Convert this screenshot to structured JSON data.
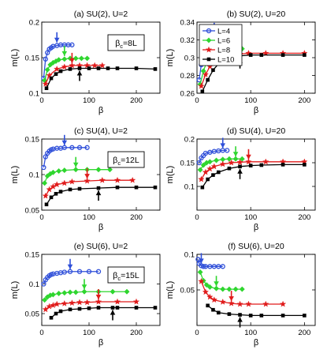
{
  "figure": {
    "legend": {
      "entries": [
        {
          "label": "L=4",
          "color": "#2f4fd9",
          "marker": "circle"
        },
        {
          "label": "L=6",
          "color": "#2fd62f",
          "marker": "diamond"
        },
        {
          "label": "L=8",
          "color": "#e01b1b",
          "marker": "star"
        },
        {
          "label": "L=10",
          "color": "#000000",
          "marker": "square"
        }
      ],
      "placement": "panel (b) top-left"
    }
  },
  "chart_data": [
    {
      "type": "line",
      "title": "(a) SU(2), U=2",
      "xlabel": "β",
      "ylabel": "m(L)",
      "xlim": [
        0,
        250
      ],
      "ylim": [
        0.1,
        0.2
      ],
      "xticks": [
        "0",
        "100",
        "200"
      ],
      "yticks": [
        "0.1",
        "0.15",
        "0.2"
      ],
      "annotation": {
        "prefix": "β",
        "sub": "c",
        "suffix": "=8L"
      },
      "series": [
        {
          "name": "L=4",
          "x": [
            4,
            8,
            12,
            16,
            20,
            24,
            32,
            40,
            48,
            56,
            64
          ],
          "y": [
            0.121,
            0.148,
            0.157,
            0.162,
            0.164,
            0.166,
            0.167,
            0.168,
            0.168,
            0.168,
            0.168
          ]
        },
        {
          "name": "L=6",
          "x": [
            6,
            12,
            18,
            24,
            30,
            36,
            48,
            60,
            72,
            84,
            96
          ],
          "y": [
            0.118,
            0.133,
            0.14,
            0.143,
            0.145,
            0.147,
            0.148,
            0.149,
            0.149,
            0.149,
            0.149
          ]
        },
        {
          "name": "L=8",
          "x": [
            8,
            16,
            32,
            48,
            64,
            80,
            96,
            112,
            128
          ],
          "y": [
            0.113,
            0.125,
            0.134,
            0.137,
            0.139,
            0.139,
            0.139,
            0.139,
            0.139
          ]
        },
        {
          "name": "L=10",
          "x": [
            10,
            20,
            30,
            40,
            60,
            80,
            100,
            120,
            140,
            160,
            200,
            240
          ],
          "y": [
            0.107,
            0.121,
            0.127,
            0.131,
            0.134,
            0.135,
            0.135,
            0.135,
            0.135,
            0.135,
            0.135,
            0.134
          ]
        }
      ],
      "arrows": [
        {
          "x": 32,
          "y": 0.168,
          "color": "#2f4fd9",
          "dir": "down"
        },
        {
          "x": 48,
          "y": 0.149,
          "color": "#2fd62f",
          "dir": "down"
        },
        {
          "x": 64,
          "y": 0.139,
          "color": "#e01b1b",
          "dir": "down"
        },
        {
          "x": 80,
          "y": 0.135,
          "color": "#000000",
          "dir": "up"
        }
      ]
    },
    {
      "type": "line",
      "title": "(b) SU(2), U=20",
      "xlabel": "β",
      "ylabel": "m(L)",
      "xlim": [
        0,
        220
      ],
      "ylim": [
        0.26,
        0.34
      ],
      "xticks": [
        "0",
        "100",
        "200"
      ],
      "yticks": [
        "0.26",
        "0.28",
        "0.3",
        "0.32",
        "0.34"
      ],
      "series": [
        {
          "name": "L=4",
          "x": [
            4,
            8,
            12,
            16,
            20,
            24,
            32,
            40,
            48,
            56
          ],
          "y": [
            0.275,
            0.292,
            0.305,
            0.312,
            0.317,
            0.32,
            0.322,
            0.324,
            0.325,
            0.325
          ]
        },
        {
          "name": "L=6",
          "x": [
            6,
            12,
            18,
            24,
            30,
            36,
            48,
            60,
            72,
            84
          ],
          "y": [
            0.27,
            0.285,
            0.295,
            0.3,
            0.303,
            0.306,
            0.309,
            0.31,
            0.31,
            0.31
          ]
        },
        {
          "name": "L=8",
          "x": [
            8,
            16,
            24,
            32,
            48,
            64,
            80,
            96,
            128,
            160,
            200
          ],
          "y": [
            0.268,
            0.281,
            0.29,
            0.296,
            0.301,
            0.303,
            0.304,
            0.305,
            0.305,
            0.305,
            0.305
          ]
        },
        {
          "name": "L=10",
          "x": [
            10,
            20,
            30,
            40,
            50,
            60,
            80,
            100,
            120,
            160,
            200
          ],
          "y": [
            0.262,
            0.275,
            0.286,
            0.293,
            0.298,
            0.3,
            0.302,
            0.303,
            0.303,
            0.303,
            0.303
          ]
        }
      ],
      "arrows": [
        {
          "x": 32,
          "y": 0.325,
          "color": "#2f4fd9",
          "dir": "down"
        },
        {
          "x": 48,
          "y": 0.31,
          "color": "#2fd62f",
          "dir": "down"
        },
        {
          "x": 64,
          "y": 0.305,
          "color": "#e01b1b",
          "dir": "down"
        },
        {
          "x": 80,
          "y": 0.302,
          "color": "#000000",
          "dir": "up"
        }
      ]
    },
    {
      "type": "line",
      "title": "(c) SU(4), U=2",
      "xlabel": "β",
      "ylabel": "m(L)",
      "xlim": [
        0,
        250
      ],
      "ylim": [
        0.05,
        0.15
      ],
      "xticks": [
        "0",
        "100",
        "200"
      ],
      "yticks": [
        "0.05",
        "0.1",
        "0.15"
      ],
      "annotation": {
        "prefix": "β",
        "sub": "c",
        "suffix": "=12L"
      },
      "series": [
        {
          "name": "L=4",
          "x": [
            4,
            8,
            12,
            16,
            20,
            24,
            32,
            40,
            48,
            64,
            80,
            96
          ],
          "y": [
            0.11,
            0.125,
            0.13,
            0.133,
            0.135,
            0.136,
            0.137,
            0.137,
            0.138,
            0.138,
            0.138,
            0.138
          ]
        },
        {
          "name": "L=6",
          "x": [
            6,
            12,
            18,
            24,
            36,
            48,
            72,
            96,
            120,
            144
          ],
          "y": [
            0.088,
            0.098,
            0.101,
            0.103,
            0.105,
            0.106,
            0.107,
            0.107,
            0.107,
            0.107
          ]
        },
        {
          "name": "L=8",
          "x": [
            8,
            16,
            24,
            32,
            48,
            64,
            96,
            128,
            160,
            192
          ],
          "y": [
            0.07,
            0.079,
            0.083,
            0.086,
            0.088,
            0.09,
            0.091,
            0.092,
            0.092,
            0.092
          ]
        },
        {
          "name": "L=10",
          "x": [
            10,
            20,
            30,
            40,
            60,
            80,
            120,
            160,
            200,
            240
          ],
          "y": [
            0.058,
            0.068,
            0.073,
            0.076,
            0.079,
            0.08,
            0.081,
            0.082,
            0.082,
            0.082
          ]
        }
      ],
      "arrows": [
        {
          "x": 48,
          "y": 0.138,
          "color": "#2f4fd9",
          "dir": "down"
        },
        {
          "x": 72,
          "y": 0.107,
          "color": "#2fd62f",
          "dir": "down"
        },
        {
          "x": 96,
          "y": 0.091,
          "color": "#e01b1b",
          "dir": "down"
        },
        {
          "x": 120,
          "y": 0.081,
          "color": "#000000",
          "dir": "up"
        }
      ]
    },
    {
      "type": "line",
      "title": "(d) SU(4), U=20",
      "xlabel": "β",
      "ylabel": "m(L)",
      "xlim": [
        0,
        220
      ],
      "ylim": [
        0.05,
        0.2
      ],
      "xticks": [
        "0",
        "100",
        "200"
      ],
      "yticks": [
        "0.1",
        "0.15",
        "0.2"
      ],
      "series": [
        {
          "name": "L=4",
          "x": [
            4,
            8,
            12,
            16,
            24,
            32,
            40,
            48,
            56
          ],
          "y": [
            0.15,
            0.16,
            0.165,
            0.17,
            0.172,
            0.174,
            0.175,
            0.176,
            0.176
          ]
        },
        {
          "name": "L=6",
          "x": [
            6,
            12,
            18,
            24,
            36,
            48,
            60,
            72,
            84
          ],
          "y": [
            0.135,
            0.145,
            0.15,
            0.152,
            0.155,
            0.157,
            0.158,
            0.158,
            0.158
          ]
        },
        {
          "name": "L=8",
          "x": [
            8,
            16,
            24,
            32,
            48,
            64,
            80,
            96,
            128,
            160,
            200
          ],
          "y": [
            0.115,
            0.13,
            0.137,
            0.142,
            0.147,
            0.15,
            0.151,
            0.152,
            0.152,
            0.152,
            0.152
          ]
        },
        {
          "name": "L=10",
          "x": [
            10,
            20,
            30,
            40,
            60,
            80,
            100,
            120,
            160,
            200
          ],
          "y": [
            0.098,
            0.115,
            0.124,
            0.13,
            0.138,
            0.142,
            0.144,
            0.145,
            0.146,
            0.146
          ]
        }
      ],
      "arrows": [
        {
          "x": 48,
          "y": 0.176,
          "color": "#2f4fd9",
          "dir": "down"
        },
        {
          "x": 72,
          "y": 0.158,
          "color": "#2fd62f",
          "dir": "down"
        },
        {
          "x": 96,
          "y": 0.152,
          "color": "#e01b1b",
          "dir": "down"
        },
        {
          "x": 80,
          "y": 0.142,
          "color": "#000000",
          "dir": "up"
        }
      ]
    },
    {
      "type": "line",
      "title": "(e) SU(6), U=2",
      "xlabel": "β",
      "ylabel": "m(L)",
      "xlim": [
        0,
        250
      ],
      "ylim": [
        0.03,
        0.15
      ],
      "xticks": [
        "0",
        "100",
        "200"
      ],
      "yticks": [
        "0.05",
        "0.1",
        "0.15"
      ],
      "annotation": {
        "prefix": "β",
        "sub": "c",
        "suffix": "=15L"
      },
      "series": [
        {
          "name": "L=4",
          "x": [
            4,
            8,
            12,
            16,
            20,
            24,
            32,
            40,
            48,
            60,
            80,
            100,
            120
          ],
          "y": [
            0.1,
            0.107,
            0.111,
            0.114,
            0.116,
            0.117,
            0.118,
            0.119,
            0.12,
            0.121,
            0.121,
            0.121,
            0.121
          ]
        },
        {
          "name": "L=6",
          "x": [
            6,
            12,
            18,
            24,
            36,
            48,
            60,
            72,
            90,
            120,
            150,
            180
          ],
          "y": [
            0.073,
            0.078,
            0.081,
            0.082,
            0.084,
            0.085,
            0.086,
            0.086,
            0.087,
            0.087,
            0.087,
            0.087
          ]
        },
        {
          "name": "L=8",
          "x": [
            8,
            16,
            24,
            32,
            48,
            64,
            80,
            96,
            120,
            160,
            200
          ],
          "y": [
            0.057,
            0.062,
            0.064,
            0.066,
            0.067,
            0.068,
            0.069,
            0.069,
            0.07,
            0.07,
            0.07
          ]
        },
        {
          "name": "L=10",
          "x": [
            20,
            30,
            40,
            60,
            80,
            100,
            120,
            150,
            160,
            200,
            240
          ],
          "y": [
            0.043,
            0.05,
            0.054,
            0.057,
            0.058,
            0.059,
            0.06,
            0.06,
            0.06,
            0.06,
            0.06
          ]
        }
      ],
      "arrows": [
        {
          "x": 60,
          "y": 0.121,
          "color": "#2f4fd9",
          "dir": "down"
        },
        {
          "x": 90,
          "y": 0.087,
          "color": "#2fd62f",
          "dir": "down"
        },
        {
          "x": 120,
          "y": 0.07,
          "color": "#e01b1b",
          "dir": "down"
        },
        {
          "x": 150,
          "y": 0.06,
          "color": "#000000",
          "dir": "up"
        }
      ]
    },
    {
      "type": "line",
      "title": "(f) SU(6), U=20",
      "xlabel": "β",
      "ylabel": "m(L)",
      "xlim": [
        0,
        220
      ],
      "ylim": [
        0,
        0.1
      ],
      "xticks": [
        "0",
        "100",
        "200"
      ],
      "yticks": [
        "0.05",
        "0.1"
      ],
      "series": [
        {
          "name": "L=4",
          "x": [
            2,
            4,
            8,
            12,
            16,
            24,
            32,
            40,
            48
          ],
          "y": [
            0.093,
            0.087,
            0.084,
            0.083,
            0.083,
            0.083,
            0.083,
            0.083,
            0.083
          ]
        },
        {
          "name": "L=6",
          "x": [
            6,
            12,
            18,
            24,
            36,
            48,
            60,
            72,
            84
          ],
          "y": [
            0.075,
            0.063,
            0.057,
            0.054,
            0.052,
            0.051,
            0.051,
            0.051,
            0.051
          ]
        },
        {
          "name": "L=8",
          "x": [
            8,
            16,
            24,
            32,
            48,
            64,
            80,
            96,
            128,
            160
          ],
          "y": [
            0.062,
            0.047,
            0.04,
            0.036,
            0.033,
            0.031,
            0.03,
            0.03,
            0.03,
            0.03
          ]
        },
        {
          "name": "L=10",
          "x": [
            20,
            30,
            40,
            60,
            80,
            100,
            120,
            160,
            200
          ],
          "y": [
            0.028,
            0.022,
            0.018,
            0.016,
            0.015,
            0.014,
            0.014,
            0.014,
            0.014
          ]
        }
      ],
      "arrows": [
        {
          "x": 8,
          "y": 0.084,
          "color": "#2f4fd9",
          "dir": "down"
        },
        {
          "x": 36,
          "y": 0.052,
          "color": "#2fd62f",
          "dir": "down"
        },
        {
          "x": 64,
          "y": 0.031,
          "color": "#e01b1b",
          "dir": "down"
        },
        {
          "x": 80,
          "y": 0.015,
          "color": "#000000",
          "dir": "up"
        }
      ]
    }
  ]
}
